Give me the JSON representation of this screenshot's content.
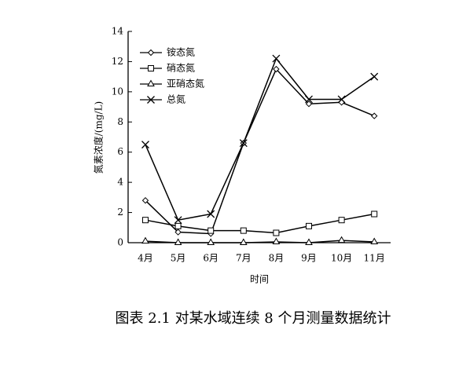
{
  "chart_data": {
    "type": "line",
    "ylabel": "氮素浓度/(mg/L)",
    "xlabel": "时间",
    "caption": "图表 2.1 对某水域连续 8 个月测量数据统计",
    "categories": [
      "4月",
      "5月",
      "6月",
      "7月",
      "8月",
      "9月",
      "10月",
      "11月"
    ],
    "series": [
      {
        "name": "铵态氮",
        "color": "#000000",
        "marker": "diamond",
        "values": [
          2.8,
          0.7,
          0.6,
          6.6,
          11.5,
          9.2,
          9.3,
          8.4
        ]
      },
      {
        "name": "硝态氮",
        "color": "#000000",
        "marker": "square",
        "values": [
          1.5,
          1.1,
          0.8,
          0.8,
          0.65,
          1.1,
          1.5,
          1.9
        ]
      },
      {
        "name": "亚硝态氮",
        "color": "#000000",
        "marker": "triangle",
        "values": [
          0.1,
          0.0,
          0.0,
          0.0,
          0.05,
          0.0,
          0.15,
          0.05
        ]
      },
      {
        "name": "总氮",
        "color": "#000000",
        "marker": "cross",
        "values": [
          6.5,
          1.5,
          1.9,
          6.6,
          12.2,
          9.5,
          9.5,
          11.0
        ]
      }
    ],
    "ylim": [
      0,
      14
    ],
    "yticks": [
      0,
      2,
      4,
      6,
      8,
      10,
      12,
      14
    ],
    "legend": "upper-left"
  }
}
